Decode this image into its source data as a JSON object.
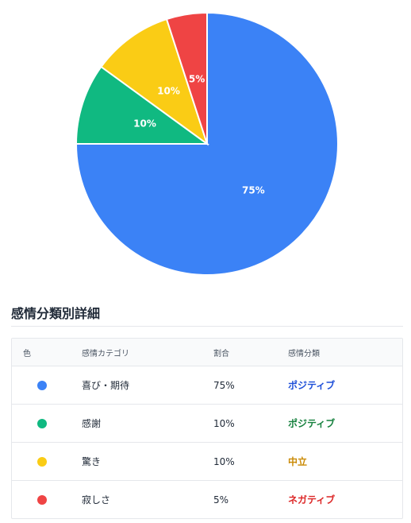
{
  "chart_data": {
    "type": "pie",
    "categories": [
      "喜び・期待",
      "感謝",
      "驚き",
      "寂しさ"
    ],
    "values": [
      75,
      10,
      10,
      5
    ],
    "value_labels": [
      "75%",
      "10%",
      "10%",
      "5%"
    ],
    "colors": [
      "#3b82f6",
      "#10b981",
      "#facc15",
      "#ef4444"
    ],
    "start": "12 o'clock",
    "direction": "clockwise"
  },
  "section": {
    "title": "感情分類別詳細"
  },
  "table": {
    "headers": {
      "color": "色",
      "category": "感情カテゴリ",
      "ratio": "割合",
      "classification": "感情分類"
    },
    "rows": [
      {
        "color": "#3b82f6",
        "category": "喜び・期待",
        "ratio": "75%",
        "classification": "ポジティブ",
        "class_color": "#1d4ed8"
      },
      {
        "color": "#10b981",
        "category": "感謝",
        "ratio": "10%",
        "classification": "ポジティブ",
        "class_color": "#15803d"
      },
      {
        "color": "#facc15",
        "category": "驚き",
        "ratio": "10%",
        "classification": "中立",
        "class_color": "#ca8a04"
      },
      {
        "color": "#ef4444",
        "category": "寂しさ",
        "ratio": "5%",
        "classification": "ネガティブ",
        "class_color": "#dc2626"
      }
    ]
  }
}
